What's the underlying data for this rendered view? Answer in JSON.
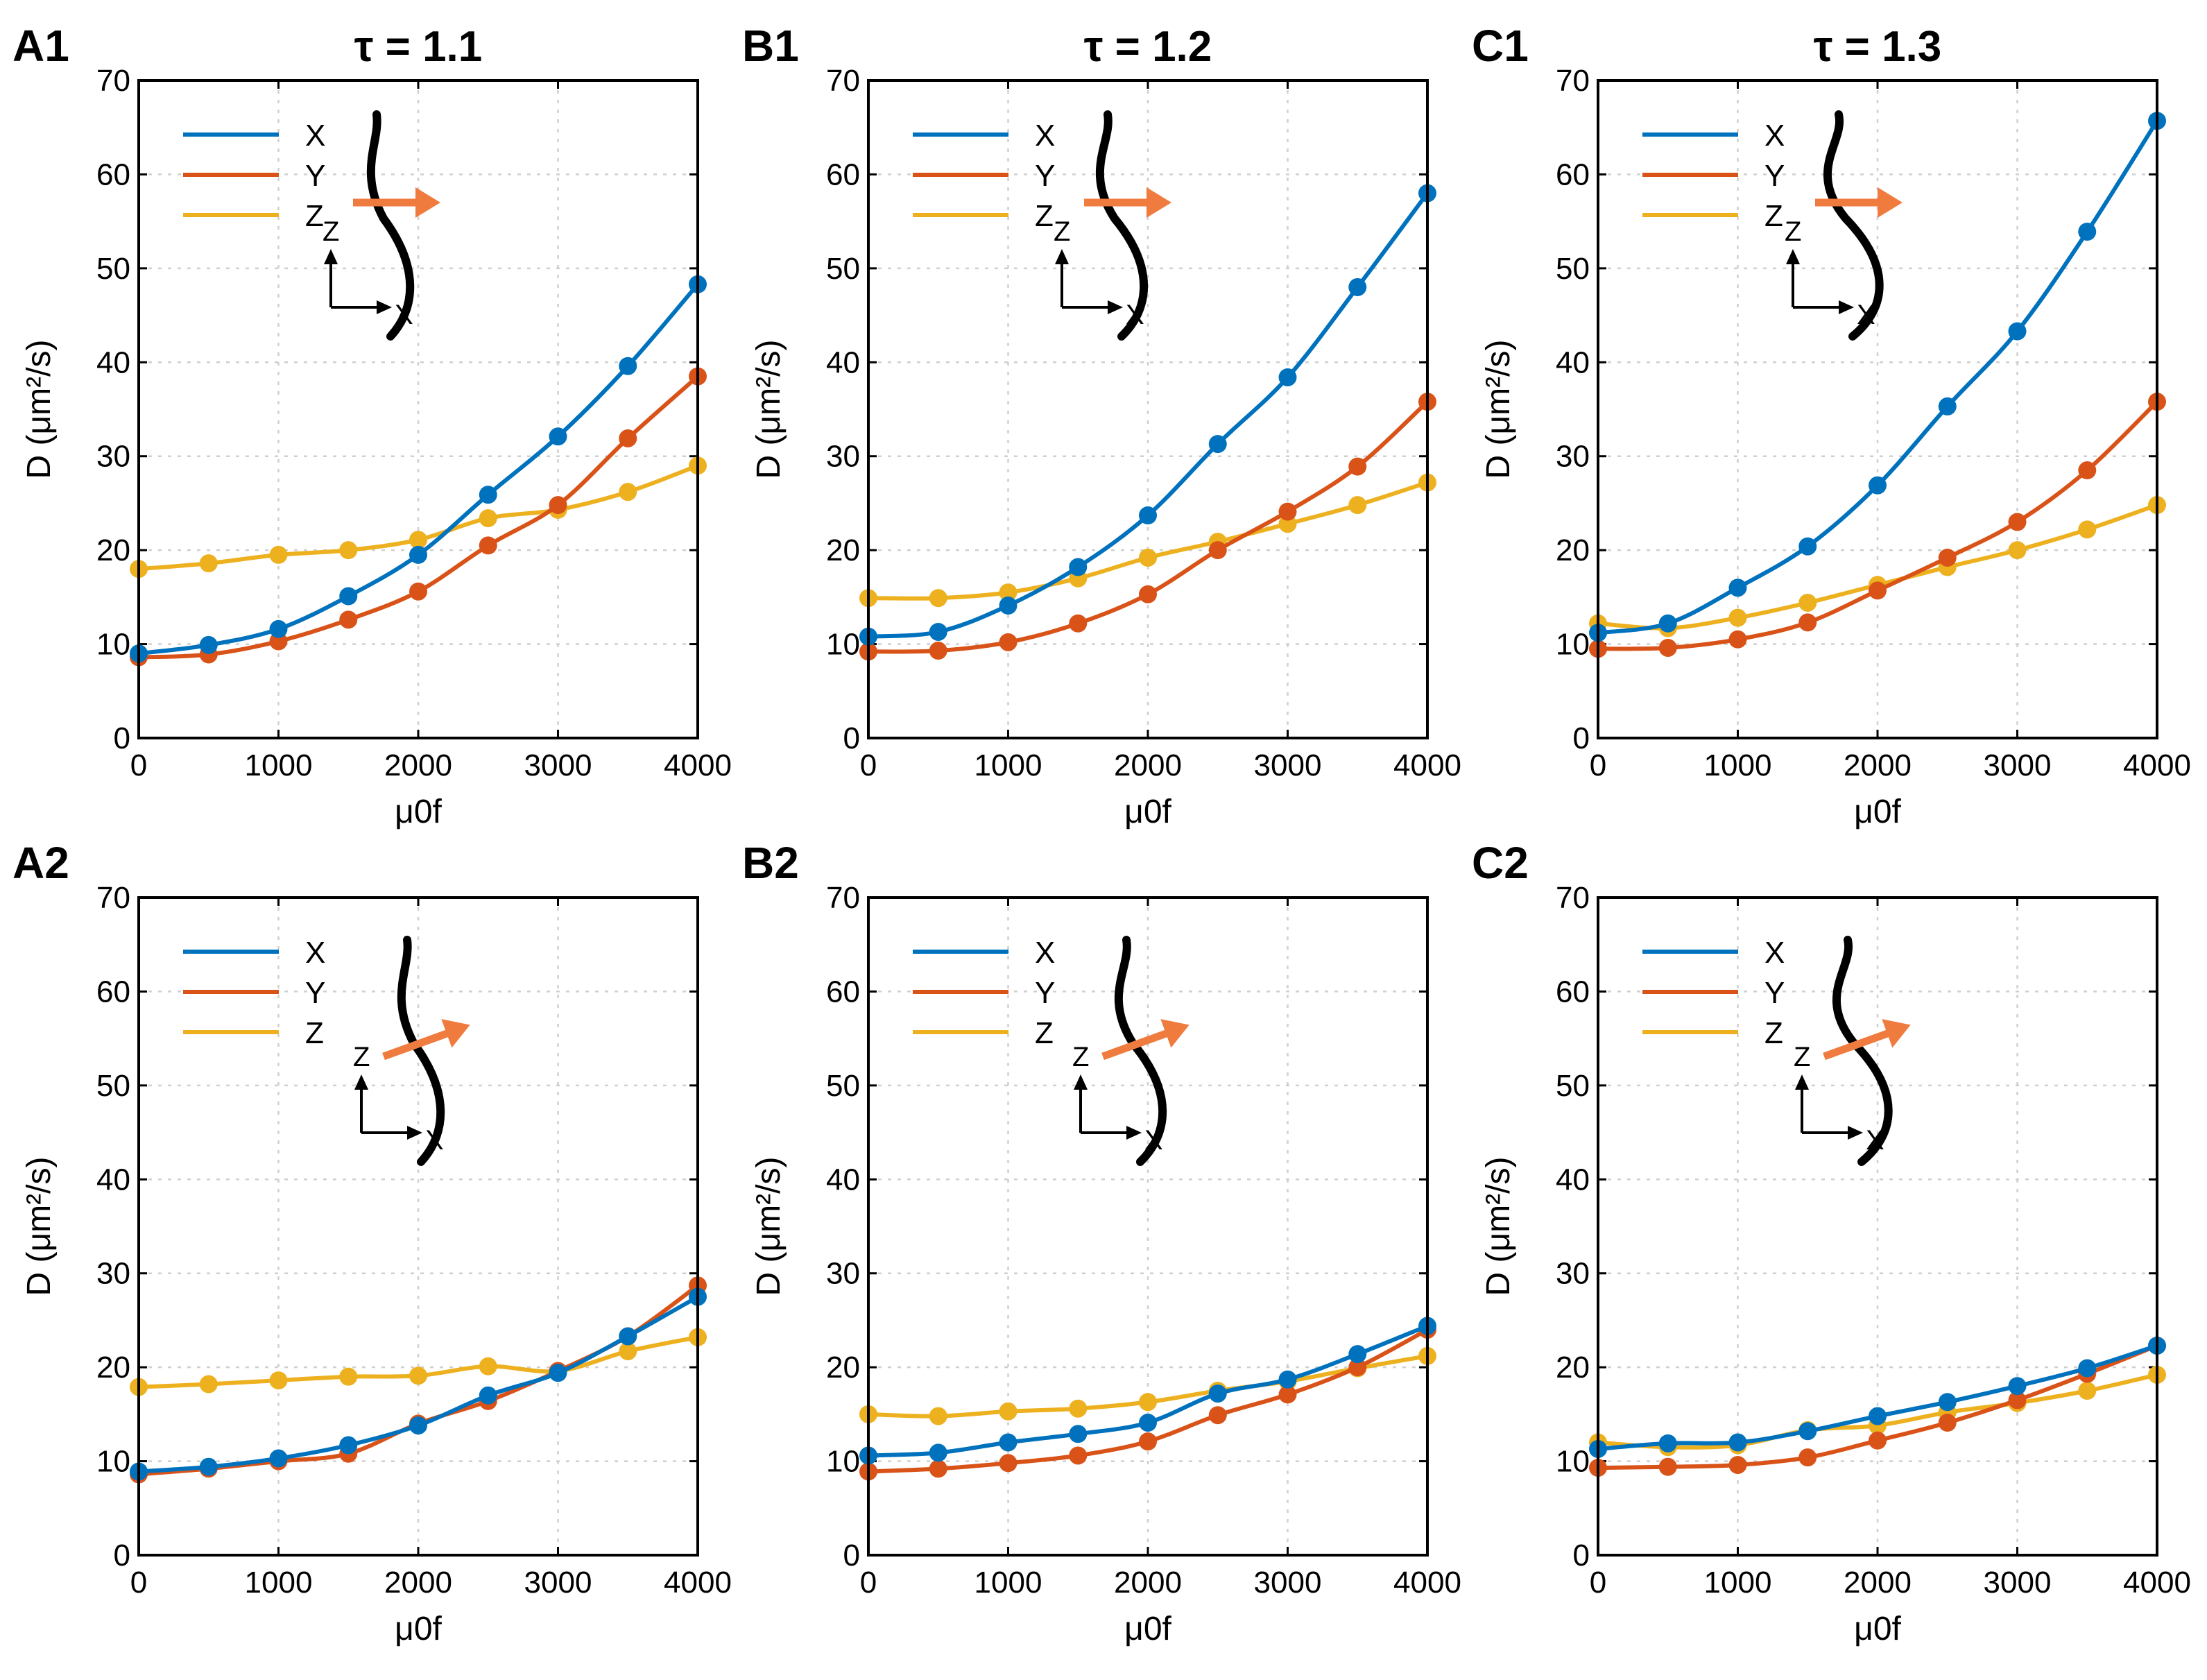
{
  "figure": {
    "colors": {
      "X": "#0072BD",
      "Y": "#D95319",
      "Z": "#EDB120",
      "arrow": "#F07B3F",
      "axis": "#000000",
      "grid": "#cfcfcf"
    }
  },
  "chart_data": [
    {
      "id": "A1",
      "type": "line",
      "panel_label": "A1",
      "title": "τ = 1.1",
      "xlabel": "μ0f",
      "ylabel": "D (μm²/s)",
      "x": [
        0,
        500,
        1000,
        1500,
        2000,
        2500,
        3000,
        3500,
        4000
      ],
      "xlim": [
        0,
        4000
      ],
      "ylim": [
        0,
        70
      ],
      "xticks": [
        "0",
        "1000",
        "2000",
        "3000",
        "4000"
      ],
      "yticks": [
        "0",
        "10",
        "20",
        "30",
        "40",
        "50",
        "60",
        "70"
      ],
      "legend": [
        "X",
        "Y",
        "Z"
      ],
      "inset": {
        "axis_up": "Z",
        "axis_right": "X",
        "arrow": "horizontal"
      },
      "series": [
        {
          "name": "X",
          "values": [
            9.0,
            9.9,
            11.6,
            15.1,
            19.5,
            25.9,
            32.1,
            39.6,
            48.3
          ]
        },
        {
          "name": "Y",
          "values": [
            8.6,
            8.9,
            10.3,
            12.6,
            15.6,
            20.5,
            24.8,
            31.9,
            38.5
          ]
        },
        {
          "name": "Z",
          "values": [
            18.0,
            18.6,
            19.5,
            20.0,
            21.1,
            23.4,
            24.3,
            26.2,
            29.0
          ]
        }
      ]
    },
    {
      "id": "B1",
      "type": "line",
      "panel_label": "B1",
      "title": "τ = 1.2",
      "xlabel": "μ0f",
      "ylabel": "D (μm²/s)",
      "x": [
        0,
        500,
        1000,
        1500,
        2000,
        2500,
        3000,
        3500,
        4000
      ],
      "xlim": [
        0,
        4000
      ],
      "ylim": [
        0,
        70
      ],
      "xticks": [
        "0",
        "1000",
        "2000",
        "3000",
        "4000"
      ],
      "yticks": [
        "0",
        "10",
        "20",
        "30",
        "40",
        "50",
        "60",
        "70"
      ],
      "legend": [
        "X",
        "Y",
        "Z"
      ],
      "inset": {
        "axis_up": "Z",
        "axis_right": "X",
        "arrow": "horizontal"
      },
      "series": [
        {
          "name": "X",
          "values": [
            10.8,
            11.3,
            14.1,
            18.2,
            23.7,
            31.3,
            38.4,
            48.0,
            58.0
          ]
        },
        {
          "name": "Y",
          "values": [
            9.2,
            9.3,
            10.2,
            12.2,
            15.3,
            20.0,
            24.1,
            28.9,
            35.8
          ]
        },
        {
          "name": "Z",
          "values": [
            14.9,
            14.9,
            15.5,
            17.0,
            19.2,
            20.9,
            22.8,
            24.8,
            27.2
          ]
        }
      ]
    },
    {
      "id": "C1",
      "type": "line",
      "panel_label": "C1",
      "title": "τ = 1.3",
      "xlabel": "μ0f",
      "ylabel": "D (μm²/s)",
      "x": [
        0,
        500,
        1000,
        1500,
        2000,
        2500,
        3000,
        3500,
        4000
      ],
      "xlim": [
        0,
        4000
      ],
      "ylim": [
        0,
        70
      ],
      "xticks": [
        "0",
        "1000",
        "2000",
        "3000",
        "4000"
      ],
      "yticks": [
        "0",
        "10",
        "20",
        "30",
        "40",
        "50",
        "60",
        "70"
      ],
      "legend": [
        "X",
        "Y",
        "Z"
      ],
      "inset": {
        "axis_up": "Z",
        "axis_right": "X",
        "arrow": "horizontal"
      },
      "series": [
        {
          "name": "X",
          "values": [
            11.2,
            12.2,
            16.0,
            20.4,
            26.9,
            35.3,
            43.3,
            53.9,
            65.7
          ]
        },
        {
          "name": "Y",
          "values": [
            9.5,
            9.6,
            10.5,
            12.3,
            15.7,
            19.2,
            23.0,
            28.5,
            35.8
          ]
        },
        {
          "name": "Z",
          "values": [
            12.2,
            11.7,
            12.8,
            14.4,
            16.3,
            18.2,
            20.0,
            22.2,
            24.8
          ]
        }
      ]
    },
    {
      "id": "A2",
      "type": "line",
      "panel_label": "A2",
      "title": "",
      "xlabel": "μ0f",
      "ylabel": "D (μm²/s)",
      "x": [
        0,
        500,
        1000,
        1500,
        2000,
        2500,
        3000,
        3500,
        4000
      ],
      "xlim": [
        0,
        4000
      ],
      "ylim": [
        0,
        70
      ],
      "xticks": [
        "0",
        "1000",
        "2000",
        "3000",
        "4000"
      ],
      "yticks": [
        "0",
        "10",
        "20",
        "30",
        "40",
        "50",
        "60",
        "70"
      ],
      "legend": [
        "X",
        "Y",
        "Z"
      ],
      "inset": {
        "axis_up": "Z",
        "axis_right": "X",
        "arrow": "tilted"
      },
      "series": [
        {
          "name": "X",
          "values": [
            8.9,
            9.4,
            10.3,
            11.7,
            13.8,
            17.0,
            19.4,
            23.3,
            27.5
          ]
        },
        {
          "name": "Y",
          "values": [
            8.6,
            9.2,
            10.0,
            10.8,
            14.0,
            16.4,
            19.6,
            23.3,
            28.7
          ]
        },
        {
          "name": "Z",
          "values": [
            17.9,
            18.2,
            18.6,
            19.0,
            19.1,
            20.1,
            19.6,
            21.7,
            23.2
          ]
        }
      ]
    },
    {
      "id": "B2",
      "type": "line",
      "panel_label": "B2",
      "title": "",
      "xlabel": "μ0f",
      "ylabel": "D (μm²/s)",
      "x": [
        0,
        500,
        1000,
        1500,
        2000,
        2500,
        3000,
        3500,
        4000
      ],
      "xlim": [
        0,
        4000
      ],
      "ylim": [
        0,
        70
      ],
      "xticks": [
        "0",
        "1000",
        "2000",
        "3000",
        "4000"
      ],
      "yticks": [
        "0",
        "10",
        "20",
        "30",
        "40",
        "50",
        "60",
        "70"
      ],
      "legend": [
        "X",
        "Y",
        "Z"
      ],
      "inset": {
        "axis_up": "Z",
        "axis_right": "X",
        "arrow": "tilted"
      },
      "series": [
        {
          "name": "X",
          "values": [
            10.6,
            10.9,
            12.0,
            12.9,
            14.1,
            17.2,
            18.7,
            21.4,
            24.4
          ]
        },
        {
          "name": "Y",
          "values": [
            8.9,
            9.2,
            9.8,
            10.6,
            12.1,
            14.9,
            17.1,
            20.0,
            24.0
          ]
        },
        {
          "name": "Z",
          "values": [
            15.0,
            14.8,
            15.3,
            15.6,
            16.3,
            17.5,
            18.5,
            19.9,
            21.2
          ]
        }
      ]
    },
    {
      "id": "C2",
      "type": "line",
      "panel_label": "C2",
      "title": "",
      "xlabel": "μ0f",
      "ylabel": "D (μm²/s)",
      "x": [
        0,
        500,
        1000,
        1500,
        2000,
        2500,
        3000,
        3500,
        4000
      ],
      "xlim": [
        0,
        4000
      ],
      "ylim": [
        0,
        70
      ],
      "xticks": [
        "0",
        "1000",
        "2000",
        "3000",
        "4000"
      ],
      "yticks": [
        "0",
        "10",
        "20",
        "30",
        "40",
        "50",
        "60",
        "70"
      ],
      "legend": [
        "X",
        "Y",
        "Z"
      ],
      "inset": {
        "axis_up": "Z",
        "axis_right": "X",
        "arrow": "tilted"
      },
      "series": [
        {
          "name": "X",
          "values": [
            11.3,
            11.9,
            12.0,
            13.2,
            14.8,
            16.3,
            18.0,
            19.9,
            22.3
          ]
        },
        {
          "name": "Y",
          "values": [
            9.3,
            9.4,
            9.6,
            10.4,
            12.2,
            14.1,
            16.5,
            19.3,
            22.3
          ]
        },
        {
          "name": "Z",
          "values": [
            12.0,
            11.5,
            11.7,
            13.3,
            13.8,
            15.2,
            16.2,
            17.5,
            19.2
          ]
        }
      ]
    }
  ]
}
